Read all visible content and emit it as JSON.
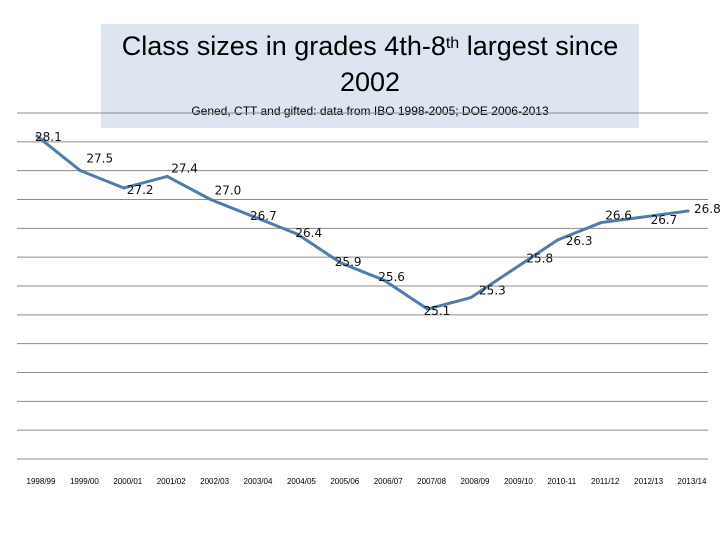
{
  "chart_data": {
    "type": "line",
    "title_main": "Class sizes in grades 4th-8",
    "title_sup": "th",
    "title_rest": " largest since 2002",
    "subtitle": "Gened, CTT and gifted: data from IBO 1998-2005; DOE 2006-2013",
    "categories": [
      "1998/99",
      "1999/00",
      "2000/01",
      "2001/02",
      "2002/03",
      "2003/04",
      "2004/05",
      "2005/06",
      "2006/07",
      "2007/08",
      "2008/09",
      "2009/10",
      "2010-11",
      "2011/12",
      "2012/13",
      "2013/14"
    ],
    "values": [
      28.1,
      27.5,
      27.2,
      27.4,
      27.0,
      26.7,
      26.4,
      25.9,
      25.6,
      25.1,
      25.3,
      25.8,
      26.3,
      26.6,
      26.7,
      26.8
    ],
    "value_labels": [
      "28.1",
      "27.5",
      "27.2",
      "27.4",
      "27.0",
      "26.7",
      "26.4",
      "25.9",
      "25.6",
      "25.1",
      "25.3",
      "25.8",
      "26.3",
      "26.6",
      "26.7",
      "26.8"
    ],
    "ylim": [
      22.5,
      28.5
    ],
    "grid": true,
    "line_color": "#4f7cac"
  }
}
